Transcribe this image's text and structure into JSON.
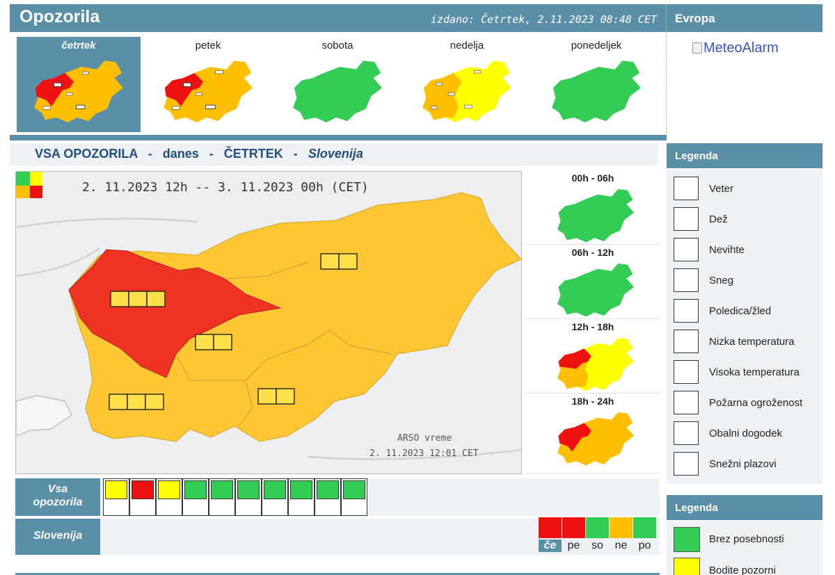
{
  "header": {
    "title": "Opozorila",
    "issued": "izdano: Četrtek, 2.11.2023 08:48 CET",
    "europe_title": "Evropa",
    "meteoalarm_link": "MeteoAlarm"
  },
  "day_tabs": [
    {
      "label": "četrtek",
      "active": true
    },
    {
      "label": "petek",
      "active": false
    },
    {
      "label": "sobota",
      "active": false
    },
    {
      "label": "nedelja",
      "active": false
    },
    {
      "label": "ponedeljek",
      "active": false
    }
  ],
  "section": {
    "all_warnings": "VSA OPOZORILA",
    "sep": "-",
    "today": "danes",
    "weekday": "ČETRTEK",
    "region": "Slovenija"
  },
  "main_map": {
    "range": "2. 11.2023 12h -- 3. 11.2023 00h    (CET)",
    "credit": "ARSO vreme",
    "time": "2. 11.2023  12:01 CET"
  },
  "periods": [
    {
      "label": "00h - 06h"
    },
    {
      "label": "06h - 12h"
    },
    {
      "label": "12h - 18h"
    },
    {
      "label": "18h - 24h"
    }
  ],
  "rows": {
    "all_label_line1": "Vsa",
    "all_label_line2": "opozorila",
    "slovenia_label": "Slovenija"
  },
  "warning_icons": [
    {
      "icon": "wind-icon",
      "level": "yellow"
    },
    {
      "icon": "rain-icon",
      "level": "red"
    },
    {
      "icon": "thunderstorm-icon",
      "level": "yellow"
    },
    {
      "icon": "snow-icon",
      "level": "green"
    },
    {
      "icon": "ice-icon",
      "level": "green"
    },
    {
      "icon": "low-temperature-icon",
      "level": "green"
    },
    {
      "icon": "high-temperature-icon",
      "level": "green"
    },
    {
      "icon": "fire-icon",
      "level": "green"
    },
    {
      "icon": "coastal-icon",
      "level": "green"
    },
    {
      "icon": "avalanche-icon",
      "level": "green"
    }
  ],
  "mini_days": [
    {
      "label": "če",
      "level": "red",
      "active": true
    },
    {
      "label": "pe",
      "level": "red",
      "active": false
    },
    {
      "label": "so",
      "level": "green",
      "active": false
    },
    {
      "label": "ne",
      "level": "orange",
      "active": false
    },
    {
      "label": "po",
      "level": "green",
      "active": false
    }
  ],
  "legend": {
    "title1": "Legenda",
    "items": [
      {
        "icon": "wind-icon",
        "label": "Veter"
      },
      {
        "icon": "rain-icon",
        "label": "Dež"
      },
      {
        "icon": "thunderstorm-icon",
        "label": "Nevihte"
      },
      {
        "icon": "snow-icon",
        "label": "Sneg"
      },
      {
        "icon": "ice-icon",
        "label": "Poledica/žled"
      },
      {
        "icon": "low-temperature-icon",
        "label": "Nizka temperatura"
      },
      {
        "icon": "high-temperature-icon",
        "label": "Visoka temperatura"
      },
      {
        "icon": "fire-icon",
        "label": "Požarna ogroženost"
      },
      {
        "icon": "coastal-icon",
        "label": "Obalni dogodek"
      },
      {
        "icon": "avalanche-icon",
        "label": "Snežni plazovi"
      }
    ],
    "title2": "Legenda",
    "levels": [
      {
        "label": "Brez posebnosti",
        "color": "#33cc55"
      },
      {
        "label": "Bodite pozorni",
        "color": "#ffff00"
      }
    ]
  },
  "colors": {
    "accent": "#5a8fa8",
    "green": "#33cc55",
    "yellow": "#ffff00",
    "orange": "#ffbf00",
    "red": "#ee1111"
  }
}
